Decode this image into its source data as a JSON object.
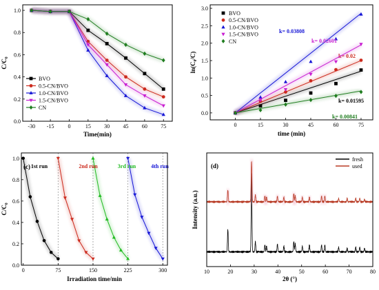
{
  "chart_data": [
    {
      "type": "line",
      "panel": "a",
      "xlabel": "Time(min)",
      "ylabel": "C/C₀",
      "xlim": [
        -37,
        82
      ],
      "ylim": [
        0,
        1.05
      ],
      "xticks": [
        -30,
        -15,
        0,
        15,
        30,
        45,
        60,
        75
      ],
      "yticks": [
        0.0,
        0.2,
        0.4,
        0.6,
        0.8,
        1.0
      ],
      "ytick_labels": [
        "0.0",
        "0.2",
        "0.4",
        "0.6",
        "0.8",
        "1.0"
      ],
      "legend": "bottom-left",
      "series": [
        {
          "name": "BVO",
          "color": "#000000",
          "marker": "square",
          "x": [
            -30,
            -15,
            0,
            15,
            30,
            45,
            60,
            75
          ],
          "y": [
            1.0,
            0.99,
            0.99,
            0.82,
            0.7,
            0.57,
            0.43,
            0.29
          ]
        },
        {
          "name": "0.5-CN/BVO",
          "color": "#cc2a1d",
          "marker": "circle",
          "x": [
            -30,
            -15,
            0,
            15,
            30,
            45,
            60,
            75
          ],
          "y": [
            1.0,
            0.99,
            0.99,
            0.72,
            0.55,
            0.4,
            0.29,
            0.22
          ]
        },
        {
          "name": "1.0-CN/BVO",
          "color": "#1515d6",
          "marker": "triangle-up",
          "x": [
            -30,
            -15,
            0,
            15,
            30,
            45,
            60,
            75
          ],
          "y": [
            1.0,
            0.99,
            0.99,
            0.64,
            0.41,
            0.23,
            0.12,
            0.06
          ]
        },
        {
          "name": "1.5-CN/BVO",
          "color": "#c81fd1",
          "marker": "triangle-down",
          "x": [
            -30,
            -15,
            0,
            15,
            30,
            45,
            60,
            75
          ],
          "y": [
            1.0,
            0.99,
            0.99,
            0.69,
            0.51,
            0.33,
            0.23,
            0.14
          ]
        },
        {
          "name": "CN",
          "color": "#1f7d1f",
          "marker": "diamond",
          "x": [
            -30,
            -15,
            0,
            15,
            30,
            45,
            60,
            75
          ],
          "y": [
            1.0,
            0.99,
            0.99,
            0.92,
            0.79,
            0.69,
            0.61,
            0.55
          ]
        }
      ]
    },
    {
      "type": "scatter",
      "panel": "b",
      "xlabel": "time (min)",
      "ylabel": "ln(C₀/C)",
      "xlim": [
        -15,
        82
      ],
      "ylim": [
        -0.2,
        3.1
      ],
      "xticks": [
        0,
        15,
        30,
        45,
        60,
        75
      ],
      "yticks": [
        0.0,
        0.5,
        1.0,
        1.5,
        2.0,
        2.5,
        3.0
      ],
      "ytick_labels": [
        "0.0",
        "0.5",
        "1.0",
        "1.5",
        "2.0",
        "2.5",
        "3.0"
      ],
      "legend": "top-left",
      "series": [
        {
          "name": "BVO",
          "color": "#000000",
          "marker": "square",
          "x": [
            0,
            15,
            30,
            45,
            60,
            75
          ],
          "y": [
            0.0,
            0.2,
            0.36,
            0.57,
            0.84,
            1.23
          ],
          "fit_k": 0.01595,
          "k_label": "k= 0.01595"
        },
        {
          "name": "0.5-CN/BVO",
          "color": "#cc2a1d",
          "marker": "circle",
          "x": [
            0,
            15,
            30,
            45,
            60,
            75
          ],
          "y": [
            0.0,
            0.33,
            0.6,
            0.92,
            1.24,
            1.51
          ],
          "fit_k": 0.02,
          "k_label": "k= 0.02"
        },
        {
          "name": "1.0-CN/BVO",
          "color": "#1515d6",
          "marker": "triangle-up",
          "x": [
            0,
            15,
            30,
            45,
            60,
            75
          ],
          "y": [
            0.0,
            0.45,
            0.89,
            1.47,
            2.12,
            2.83
          ],
          "fit_k": 0.03808,
          "k_label": "k= 0.03808"
        },
        {
          "name": "1.5-CN/BVO",
          "color": "#c81fd1",
          "marker": "triangle-down",
          "x": [
            0,
            15,
            30,
            45,
            60,
            75
          ],
          "y": [
            0.0,
            0.37,
            0.67,
            1.11,
            1.47,
            1.97
          ],
          "fit_k": 0.02601,
          "k_label": "k= 0.02601"
        },
        {
          "name": "CN",
          "color": "#1f7d1f",
          "marker": "diamond",
          "x": [
            0,
            15,
            30,
            45,
            60,
            75
          ],
          "y": [
            0.0,
            0.08,
            0.24,
            0.37,
            0.49,
            0.6
          ],
          "fit_k": 0.00841,
          "k_label": "k= 0.00841"
        }
      ]
    },
    {
      "type": "line",
      "panel": "c",
      "xlabel": "Irradiation time/min",
      "ylabel": "C/C₀",
      "xlim": [
        -4,
        310
      ],
      "ylim": [
        0,
        1.05
      ],
      "xticks": [
        0,
        75,
        150,
        225,
        300
      ],
      "yticks": [
        0.0,
        0.2,
        0.4,
        0.6,
        0.8,
        1.0
      ],
      "ytick_labels": [
        "0.0",
        "0.2",
        "0.4",
        "0.6",
        "0.8",
        "1.0"
      ],
      "run_boundaries": [
        75,
        150,
        225,
        300
      ],
      "series": [
        {
          "name": "1st run",
          "color": "#000000",
          "marker": "circle",
          "x": [
            0,
            15,
            30,
            45,
            60,
            75
          ],
          "y": [
            1.0,
            0.64,
            0.41,
            0.23,
            0.12,
            0.06
          ]
        },
        {
          "name": "2nd run",
          "color": "#cc2a1d",
          "marker": "triangle-down",
          "x": [
            75,
            90,
            105,
            120,
            135,
            150
          ],
          "y": [
            1.0,
            0.63,
            0.43,
            0.23,
            0.12,
            0.06
          ]
        },
        {
          "name": "3rd run",
          "color": "#22bb22",
          "marker": "triangle-up",
          "x": [
            150,
            165,
            180,
            195,
            210,
            225
          ],
          "y": [
            1.0,
            0.65,
            0.43,
            0.26,
            0.14,
            0.06
          ]
        },
        {
          "name": "4th run",
          "color": "#1515d6",
          "marker": "triangle-down",
          "x": [
            225,
            240,
            255,
            270,
            285,
            300
          ],
          "y": [
            1.0,
            0.66,
            0.45,
            0.3,
            0.16,
            0.06
          ]
        }
      ]
    },
    {
      "type": "line",
      "panel": "d",
      "xlabel": "2θ (°)",
      "ylabel": "Intensity (a.u.)",
      "xlim": [
        10,
        80
      ],
      "xticks": [
        10,
        20,
        30,
        40,
        50,
        60,
        70,
        80
      ],
      "legend": "top-right",
      "series": [
        {
          "name": "fresh",
          "color": "#000000",
          "baseline": 0.13,
          "peaks": [
            [
              18.9,
              0.2
            ],
            [
              28.9,
              0.7
            ],
            [
              30.5,
              0.09
            ],
            [
              34.5,
              0.06
            ],
            [
              35.2,
              0.05
            ],
            [
              39.8,
              0.07
            ],
            [
              42.5,
              0.05
            ],
            [
              46.7,
              0.09
            ],
            [
              47.3,
              0.07
            ],
            [
              50.3,
              0.05
            ],
            [
              53.3,
              0.06
            ],
            [
              58.4,
              0.06
            ],
            [
              59.8,
              0.06
            ],
            [
              65.6,
              0.04
            ],
            [
              69.2,
              0.03
            ],
            [
              72.8,
              0.04
            ],
            [
              74.5,
              0.04
            ],
            [
              76.5,
              0.03
            ]
          ]
        },
        {
          "name": "used",
          "color": "#b83a24",
          "baseline": 0.57,
          "peaks": [
            [
              18.9,
              0.1
            ],
            [
              28.9,
              0.36
            ],
            [
              30.5,
              0.06
            ],
            [
              34.5,
              0.05
            ],
            [
              35.2,
              0.04
            ],
            [
              39.8,
              0.05
            ],
            [
              42.5,
              0.04
            ],
            [
              46.7,
              0.07
            ],
            [
              47.3,
              0.05
            ],
            [
              50.3,
              0.04
            ],
            [
              53.3,
              0.04
            ],
            [
              58.4,
              0.05
            ],
            [
              59.8,
              0.05
            ],
            [
              65.6,
              0.03
            ],
            [
              69.2,
              0.03
            ],
            [
              72.8,
              0.03
            ],
            [
              74.5,
              0.03
            ],
            [
              76.5,
              0.02
            ]
          ]
        }
      ]
    }
  ],
  "labels": {
    "c": "(c)",
    "d": "(d)"
  }
}
